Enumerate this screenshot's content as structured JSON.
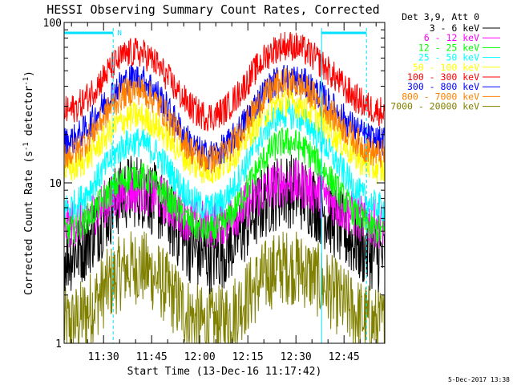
{
  "chart_data": {
    "type": "line",
    "title": "HESSI Observing Summary Count Rates, Corrected",
    "xlabel": "Start Time (13-Dec-16 11:17:42)",
    "ylabel_main": "Corrected Count Rate (s",
    "ylabel_sup1": "-1",
    "ylabel_mid": " detector",
    "ylabel_sup2": "-1",
    "ylabel_end": ")",
    "y_scale": "log",
    "ylim": [
      1,
      100
    ],
    "y_ticks": [
      {
        "value": 1,
        "label": "1"
      },
      {
        "value": 10,
        "label": "10"
      },
      {
        "value": 100,
        "label": "100"
      }
    ],
    "xlim": [
      "11:17:42",
      "12:57:42"
    ],
    "x_ticks": [
      {
        "value": "11:30",
        "label": "11:30"
      },
      {
        "value": "11:45",
        "label": "11:45"
      },
      {
        "value": "12:00",
        "label": "12:00"
      },
      {
        "value": "12:15",
        "label": "12:15"
      },
      {
        "value": "12:30",
        "label": "12:30"
      },
      {
        "value": "12:45",
        "label": "12:45"
      }
    ],
    "legend_position": "top-right",
    "legend_header": "Det 3,9, Att 0",
    "series": [
      {
        "name": "3 - 6 keV",
        "color": "#000000",
        "peak1": 9,
        "trough": 3.5,
        "peak2": 9,
        "edge": 3.5
      },
      {
        "name": "6 - 12 keV",
        "color": "#ff00ff",
        "peak1": 9,
        "trough": 5.5,
        "peak2": 10,
        "edge": 5.5
      },
      {
        "name": "12 - 25 keV",
        "color": "#00ff00",
        "peak1": 11,
        "trough": 5,
        "peak2": 18,
        "edge": 5
      },
      {
        "name": "25 - 50 keV",
        "color": "#00ffff",
        "peak1": 18,
        "trough": 7,
        "peak2": 27,
        "edge": 7
      },
      {
        "name": "50 - 100 keV",
        "color": "#ffff00",
        "peak1": 26,
        "trough": 12,
        "peak2": 32,
        "edge": 12
      },
      {
        "name": "100 - 300 keV",
        "color": "#ff0000",
        "peak1": 65,
        "trough": 26,
        "peak2": 72,
        "edge": 28
      },
      {
        "name": "300 - 800 keV",
        "color": "#0000ff",
        "peak1": 45,
        "trough": 15,
        "peak2": 45,
        "edge": 18
      },
      {
        "name": "800 - 7000 keV",
        "color": "#ff8000",
        "peak1": 38,
        "trough": 14,
        "peak2": 42,
        "edge": 15
      },
      {
        "name": "7000 - 20000 keV",
        "color": "#808000",
        "peak1": 3,
        "trough": 1.3,
        "peak2": 3,
        "edge": 1.3
      }
    ],
    "peak_times": [
      "11:40",
      "12:27"
    ],
    "trough_time": "12:03",
    "annotations": {
      "saa_bars": [
        {
          "from": "11:17:42",
          "to": "11:33"
        },
        {
          "from": "12:38",
          "to": "12:52"
        }
      ],
      "night_lines": [
        "11:17:42",
        "11:33",
        "12:38",
        "12:52"
      ],
      "n_marker": {
        "time": "11:35",
        "label": "N"
      }
    },
    "timestamp": "5-Dec-2017 13:38"
  }
}
